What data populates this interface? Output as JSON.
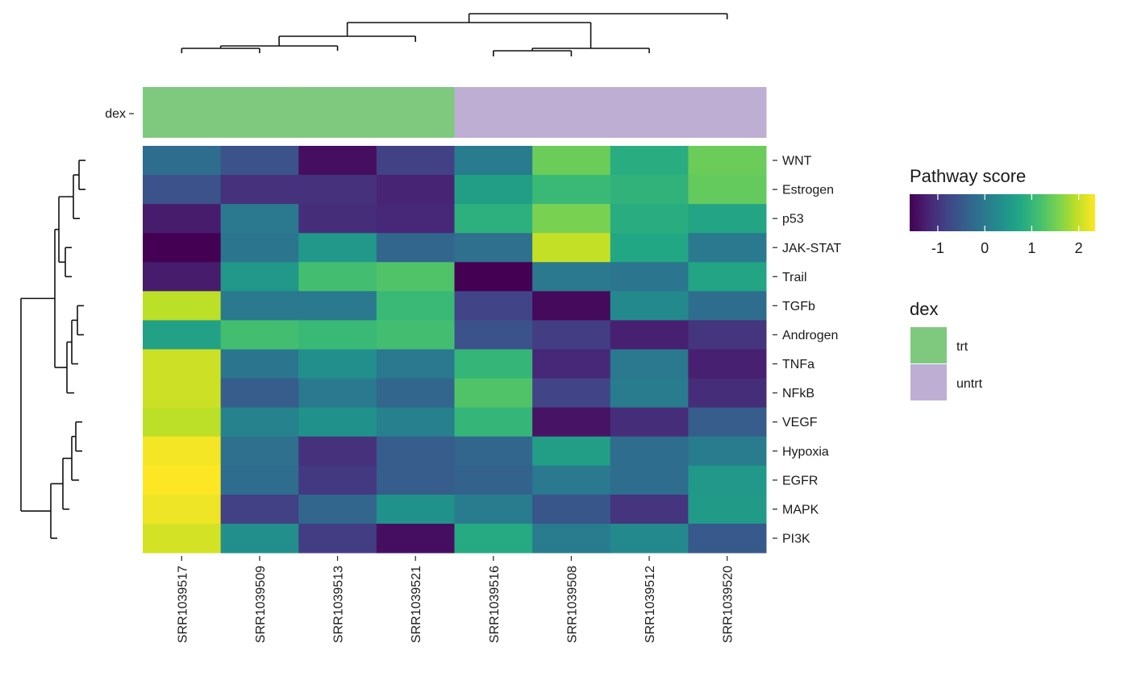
{
  "chart_data": {
    "type": "heatmap",
    "title": "",
    "rows": [
      "WNT",
      "Estrogen",
      "p53",
      "JAK-STAT",
      "Trail",
      "TGFb",
      "Androgen",
      "TNFa",
      "NFkB",
      "VEGF",
      "Hypoxia",
      "EGFR",
      "MAPK",
      "PI3K"
    ],
    "columns": [
      "SRR1039517",
      "SRR1039509",
      "SRR1039513",
      "SRR1039521",
      "SRR1039516",
      "SRR1039508",
      "SRR1039512",
      "SRR1039520"
    ],
    "values": [
      [
        -0.2,
        -0.6,
        -1.45,
        -0.85,
        0.05,
        1.45,
        0.85,
        1.45
      ],
      [
        -0.6,
        -1.05,
        -1.05,
        -1.2,
        0.6,
        1.05,
        0.95,
        1.4
      ],
      [
        -1.3,
        0.0,
        -1.1,
        -1.15,
        0.9,
        1.55,
        0.85,
        0.7
      ],
      [
        -1.6,
        -0.05,
        0.5,
        -0.3,
        -0.15,
        2.0,
        0.75,
        0.0
      ],
      [
        -1.3,
        0.5,
        1.15,
        1.25,
        -1.6,
        0.0,
        -0.05,
        0.7
      ],
      [
        1.95,
        0.0,
        0.0,
        1.05,
        -0.8,
        -1.5,
        0.25,
        -0.2
      ],
      [
        0.65,
        1.15,
        1.05,
        1.15,
        -0.6,
        -0.9,
        -1.25,
        -1.0
      ],
      [
        2.05,
        -0.05,
        0.35,
        0.0,
        1.0,
        -1.15,
        0.0,
        -1.25
      ],
      [
        2.05,
        -0.45,
        0.0,
        -0.3,
        1.25,
        -0.8,
        0.05,
        -1.1
      ],
      [
        1.95,
        0.15,
        0.4,
        0.1,
        1.0,
        -1.4,
        -1.1,
        -0.45
      ],
      [
        2.3,
        -0.15,
        -1.05,
        -0.45,
        -0.3,
        0.6,
        -0.2,
        0.05
      ],
      [
        2.35,
        -0.2,
        -0.95,
        -0.45,
        -0.35,
        0.0,
        -0.2,
        0.5
      ],
      [
        2.25,
        -0.85,
        -0.3,
        0.4,
        0.05,
        -0.55,
        -1.0,
        0.55
      ],
      [
        2.1,
        0.35,
        -0.9,
        -1.45,
        0.8,
        0.05,
        0.25,
        -0.5
      ]
    ],
    "annotation": {
      "name": "dex",
      "values": [
        "trt",
        "trt",
        "trt",
        "trt",
        "untrt",
        "untrt",
        "untrt",
        "untrt"
      ],
      "colors": {
        "trt": "#7fc97f",
        "untrt": "#beaed4"
      }
    },
    "color_scale": {
      "title": "Pathway score",
      "palette": "viridis",
      "range": [
        -1.6,
        2.35
      ],
      "ticks": [
        -1,
        0,
        1,
        2
      ],
      "tick_labels": [
        "-1",
        "0",
        "1",
        "2"
      ]
    },
    "legend_dex": {
      "title": "dex",
      "entries": [
        {
          "label": "trt",
          "color": "#7fc97f"
        },
        {
          "label": "untrt",
          "color": "#beaed4"
        }
      ]
    },
    "column_dendrogram": true,
    "row_dendrogram": true,
    "legend_position": "right"
  }
}
